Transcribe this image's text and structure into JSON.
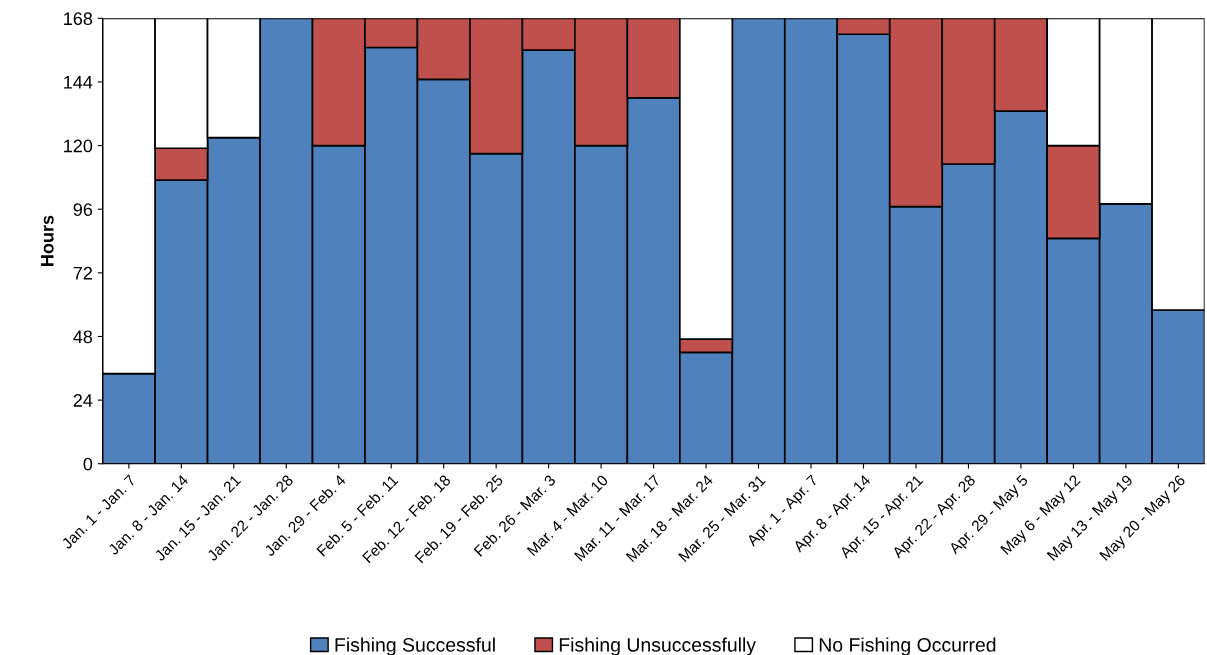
{
  "chart_data": {
    "type": "bar",
    "stacked": true,
    "ylabel": "Hours",
    "categories": [
      "Jan. 1 - Jan. 7",
      "Jan. 8 - Jan. 14",
      "Jan. 15 - Jan. 21",
      "Jan. 22 - Jan. 28",
      "Jan. 29 - Feb. 4",
      "Feb. 5 - Feb. 11",
      "Feb. 12 - Feb. 18",
      "Feb. 19 - Feb. 25",
      "Feb. 26 - Mar. 3",
      "Mar. 4 - Mar. 10",
      "Mar. 11 - Mar. 17",
      "Mar. 18 - Mar. 24",
      "Mar. 25 - Mar. 31",
      "Apr. 1 - Apr. 7",
      "Apr. 8 - Apr. 14",
      "Apr. 15 - Apr. 21",
      "Apr. 22 - Apr. 28",
      "Apr. 29 - May 5",
      "May 6 - May 12",
      "May 13 - May 19",
      "May 20 - May 26"
    ],
    "series": [
      {
        "name": "Fishing Successful",
        "color": "#4f81bd",
        "values": [
          34,
          107,
          123,
          168,
          120,
          157,
          145,
          117,
          156,
          120,
          138,
          42,
          168,
          168,
          162,
          97,
          113,
          133,
          85,
          98,
          58
        ]
      },
      {
        "name": "Fishing Unsuccessfully",
        "color": "#c0504d",
        "values": [
          null,
          12,
          null,
          null,
          48,
          11,
          23,
          51,
          12,
          48,
          30,
          5,
          null,
          null,
          6,
          71,
          55,
          35,
          35,
          null,
          null
        ]
      },
      {
        "name": "No Fishing Occurred",
        "color": "#ffffff",
        "values": [
          134,
          49,
          45,
          null,
          null,
          null,
          null,
          null,
          null,
          null,
          null,
          121,
          null,
          null,
          null,
          null,
          null,
          null,
          48,
          70,
          110
        ]
      }
    ],
    "ylim": [
      0,
      168
    ],
    "yticks": [
      0,
      24,
      48,
      72,
      96,
      120,
      144,
      168
    ],
    "grid": false,
    "legend": "bottom"
  }
}
